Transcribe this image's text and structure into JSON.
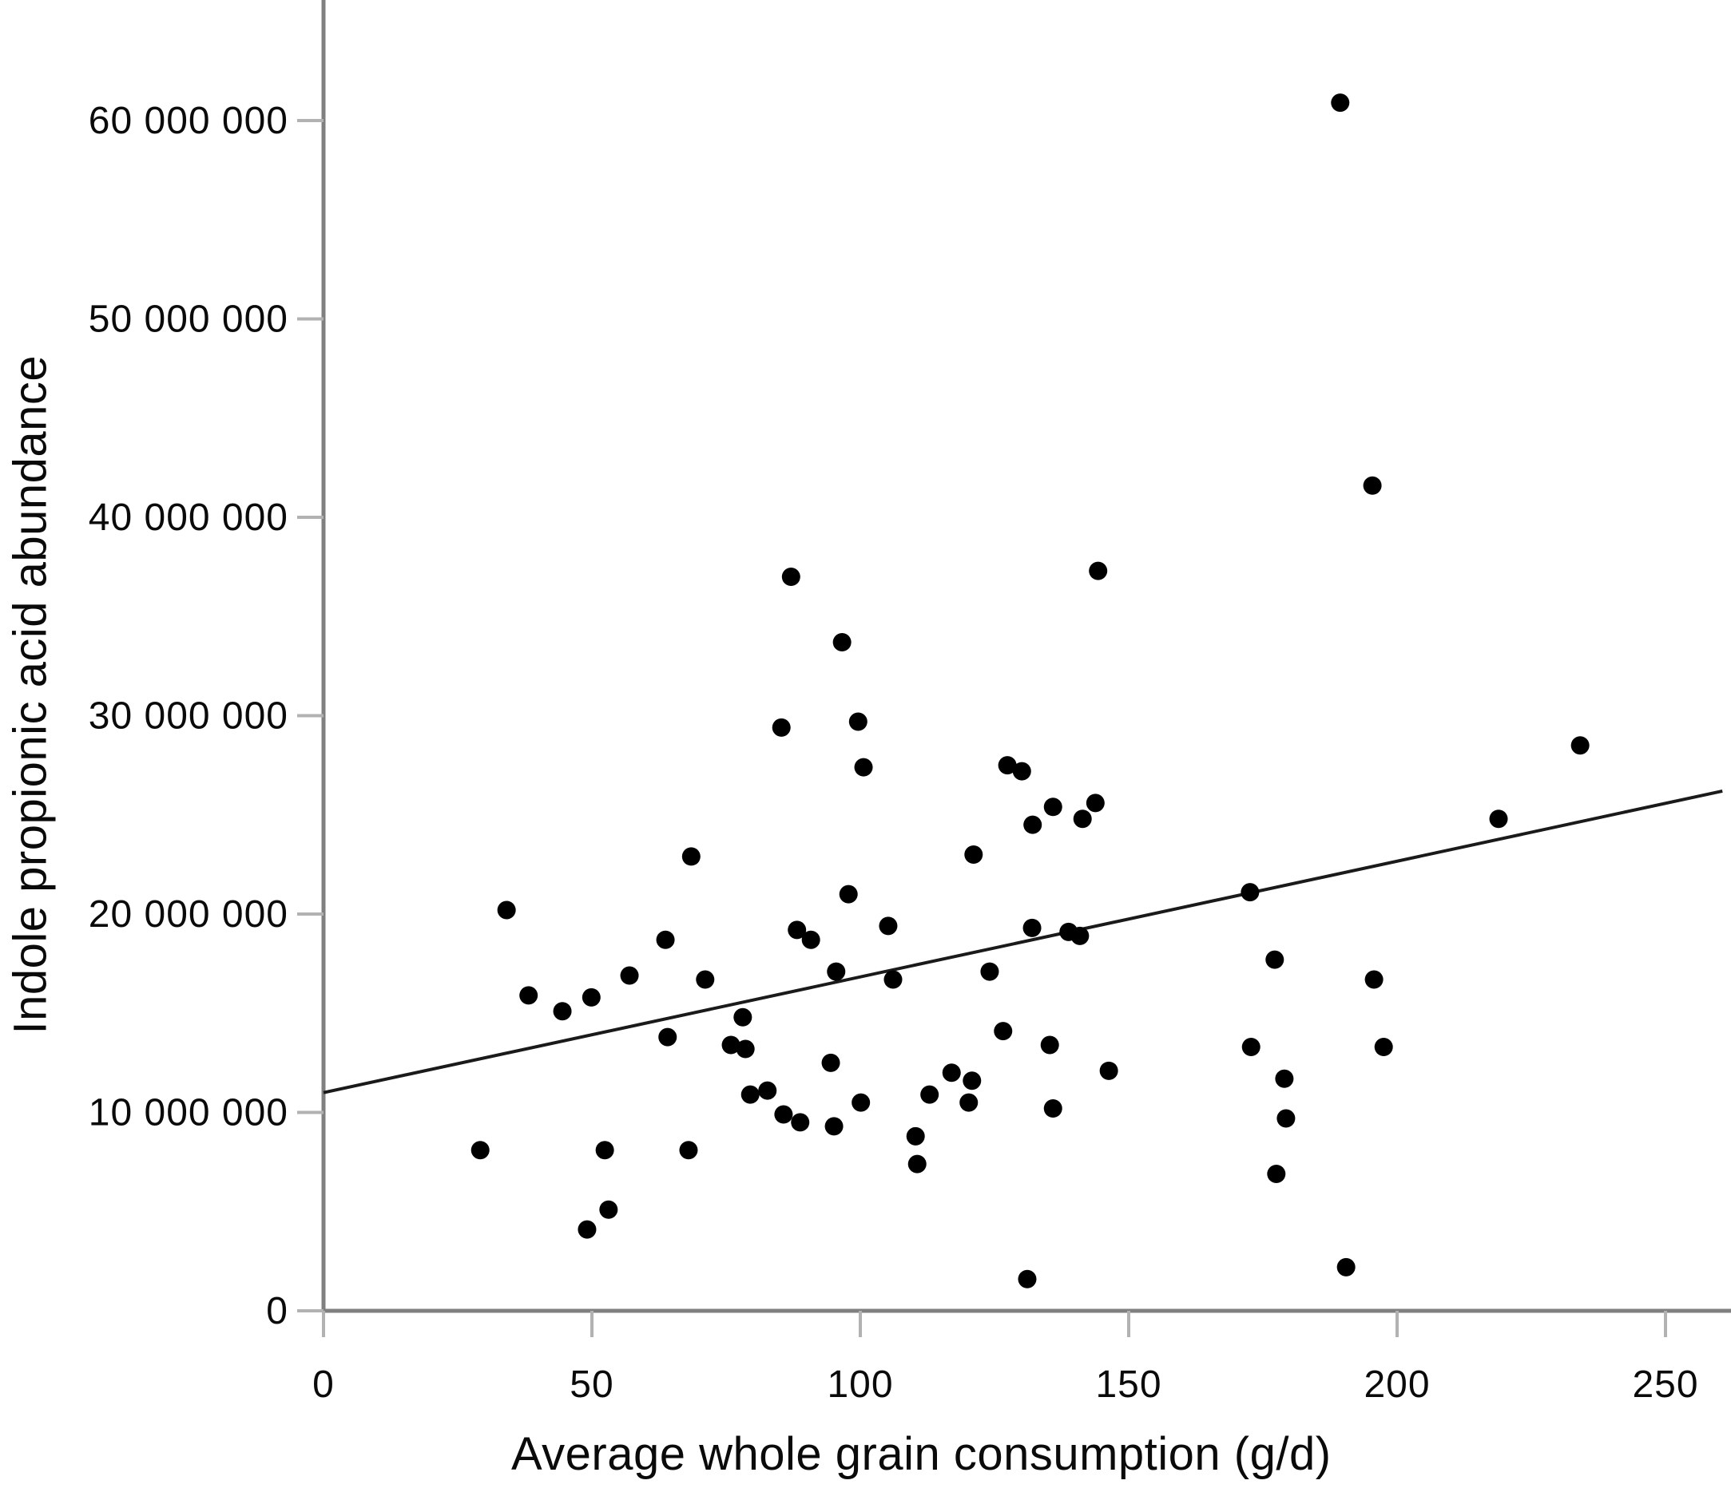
{
  "chart_data": {
    "type": "scatter",
    "title": "",
    "xlabel": "Average whole grain consumption (g/d)",
    "ylabel": "Indole propionic acid abundance",
    "xlim": [
      0,
      262
    ],
    "ylim": [
      0,
      66000000
    ],
    "grid": false,
    "legend": "none",
    "xticks": [
      {
        "value": 0,
        "label": "0"
      },
      {
        "value": 50,
        "label": "50"
      },
      {
        "value": 100,
        "label": "100"
      },
      {
        "value": 150,
        "label": "150"
      },
      {
        "value": 200,
        "label": "200"
      },
      {
        "value": 250,
        "label": "250"
      }
    ],
    "yticks": [
      {
        "value": 0,
        "label": "0"
      },
      {
        "value": 10000000,
        "label": "10 000 000"
      },
      {
        "value": 20000000,
        "label": "20 000 000"
      },
      {
        "value": 30000000,
        "label": "30 000 000"
      },
      {
        "value": 40000000,
        "label": "40 000 000"
      },
      {
        "value": 50000000,
        "label": "50 000 000"
      },
      {
        "value": 60000000,
        "label": "60 000 000"
      }
    ],
    "points": [
      [
        189.4,
        60900000
      ],
      [
        195.4,
        41600000
      ],
      [
        87.1,
        37000000
      ],
      [
        144.3,
        37300000
      ],
      [
        96.6,
        33700000
      ],
      [
        99.6,
        29700000
      ],
      [
        85.3,
        29400000
      ],
      [
        100.6,
        27400000
      ],
      [
        127.4,
        27500000
      ],
      [
        130.1,
        27200000
      ],
      [
        135.9,
        25400000
      ],
      [
        132.1,
        24500000
      ],
      [
        143.8,
        25600000
      ],
      [
        141.4,
        24800000
      ],
      [
        68.5,
        22900000
      ],
      [
        121.1,
        23000000
      ],
      [
        34.1,
        20200000
      ],
      [
        63.7,
        18700000
      ],
      [
        88.2,
        19200000
      ],
      [
        90.8,
        18700000
      ],
      [
        97.8,
        21000000
      ],
      [
        105.2,
        19400000
      ],
      [
        132.0,
        19300000
      ],
      [
        138.8,
        19100000
      ],
      [
        140.9,
        18900000
      ],
      [
        172.6,
        21100000
      ],
      [
        218.9,
        24800000
      ],
      [
        234.1,
        28500000
      ],
      [
        95.5,
        17100000
      ],
      [
        106.1,
        16700000
      ],
      [
        124.1,
        17100000
      ],
      [
        38.2,
        15900000
      ],
      [
        44.5,
        15100000
      ],
      [
        49.9,
        15800000
      ],
      [
        57.0,
        16900000
      ],
      [
        71.1,
        16700000
      ],
      [
        78.1,
        14800000
      ],
      [
        177.2,
        17700000
      ],
      [
        195.7,
        16700000
      ],
      [
        64.1,
        13800000
      ],
      [
        75.9,
        13400000
      ],
      [
        78.6,
        13200000
      ],
      [
        94.5,
        12500000
      ],
      [
        126.6,
        14100000
      ],
      [
        135.3,
        13400000
      ],
      [
        146.3,
        12100000
      ],
      [
        172.8,
        13300000
      ],
      [
        197.5,
        13300000
      ],
      [
        117.0,
        12000000
      ],
      [
        112.9,
        10900000
      ],
      [
        120.8,
        11600000
      ],
      [
        120.2,
        10500000
      ],
      [
        79.5,
        10900000
      ],
      [
        82.7,
        11100000
      ],
      [
        85.7,
        9900000
      ],
      [
        88.8,
        9500000
      ],
      [
        95.1,
        9300000
      ],
      [
        100.1,
        10500000
      ],
      [
        135.9,
        10200000
      ],
      [
        179.0,
        11700000
      ],
      [
        179.3,
        9700000
      ],
      [
        29.2,
        8100000
      ],
      [
        52.4,
        8100000
      ],
      [
        68.0,
        8100000
      ],
      [
        110.3,
        8800000
      ],
      [
        110.6,
        7400000
      ],
      [
        177.5,
        6900000
      ],
      [
        53.1,
        5100000
      ],
      [
        49.1,
        4100000
      ],
      [
        131.1,
        1600000
      ],
      [
        190.5,
        2200000
      ]
    ],
    "trend_line": {
      "x1": 0,
      "y1": 11000000,
      "x2": 260.6,
      "y2": 26200000
    },
    "marker_color": "#000000",
    "trend_line_color": "#1a1a1a",
    "axis_color": "#808080",
    "tick_color": "#b2b2b2",
    "label_color": "#0a0a0a"
  }
}
